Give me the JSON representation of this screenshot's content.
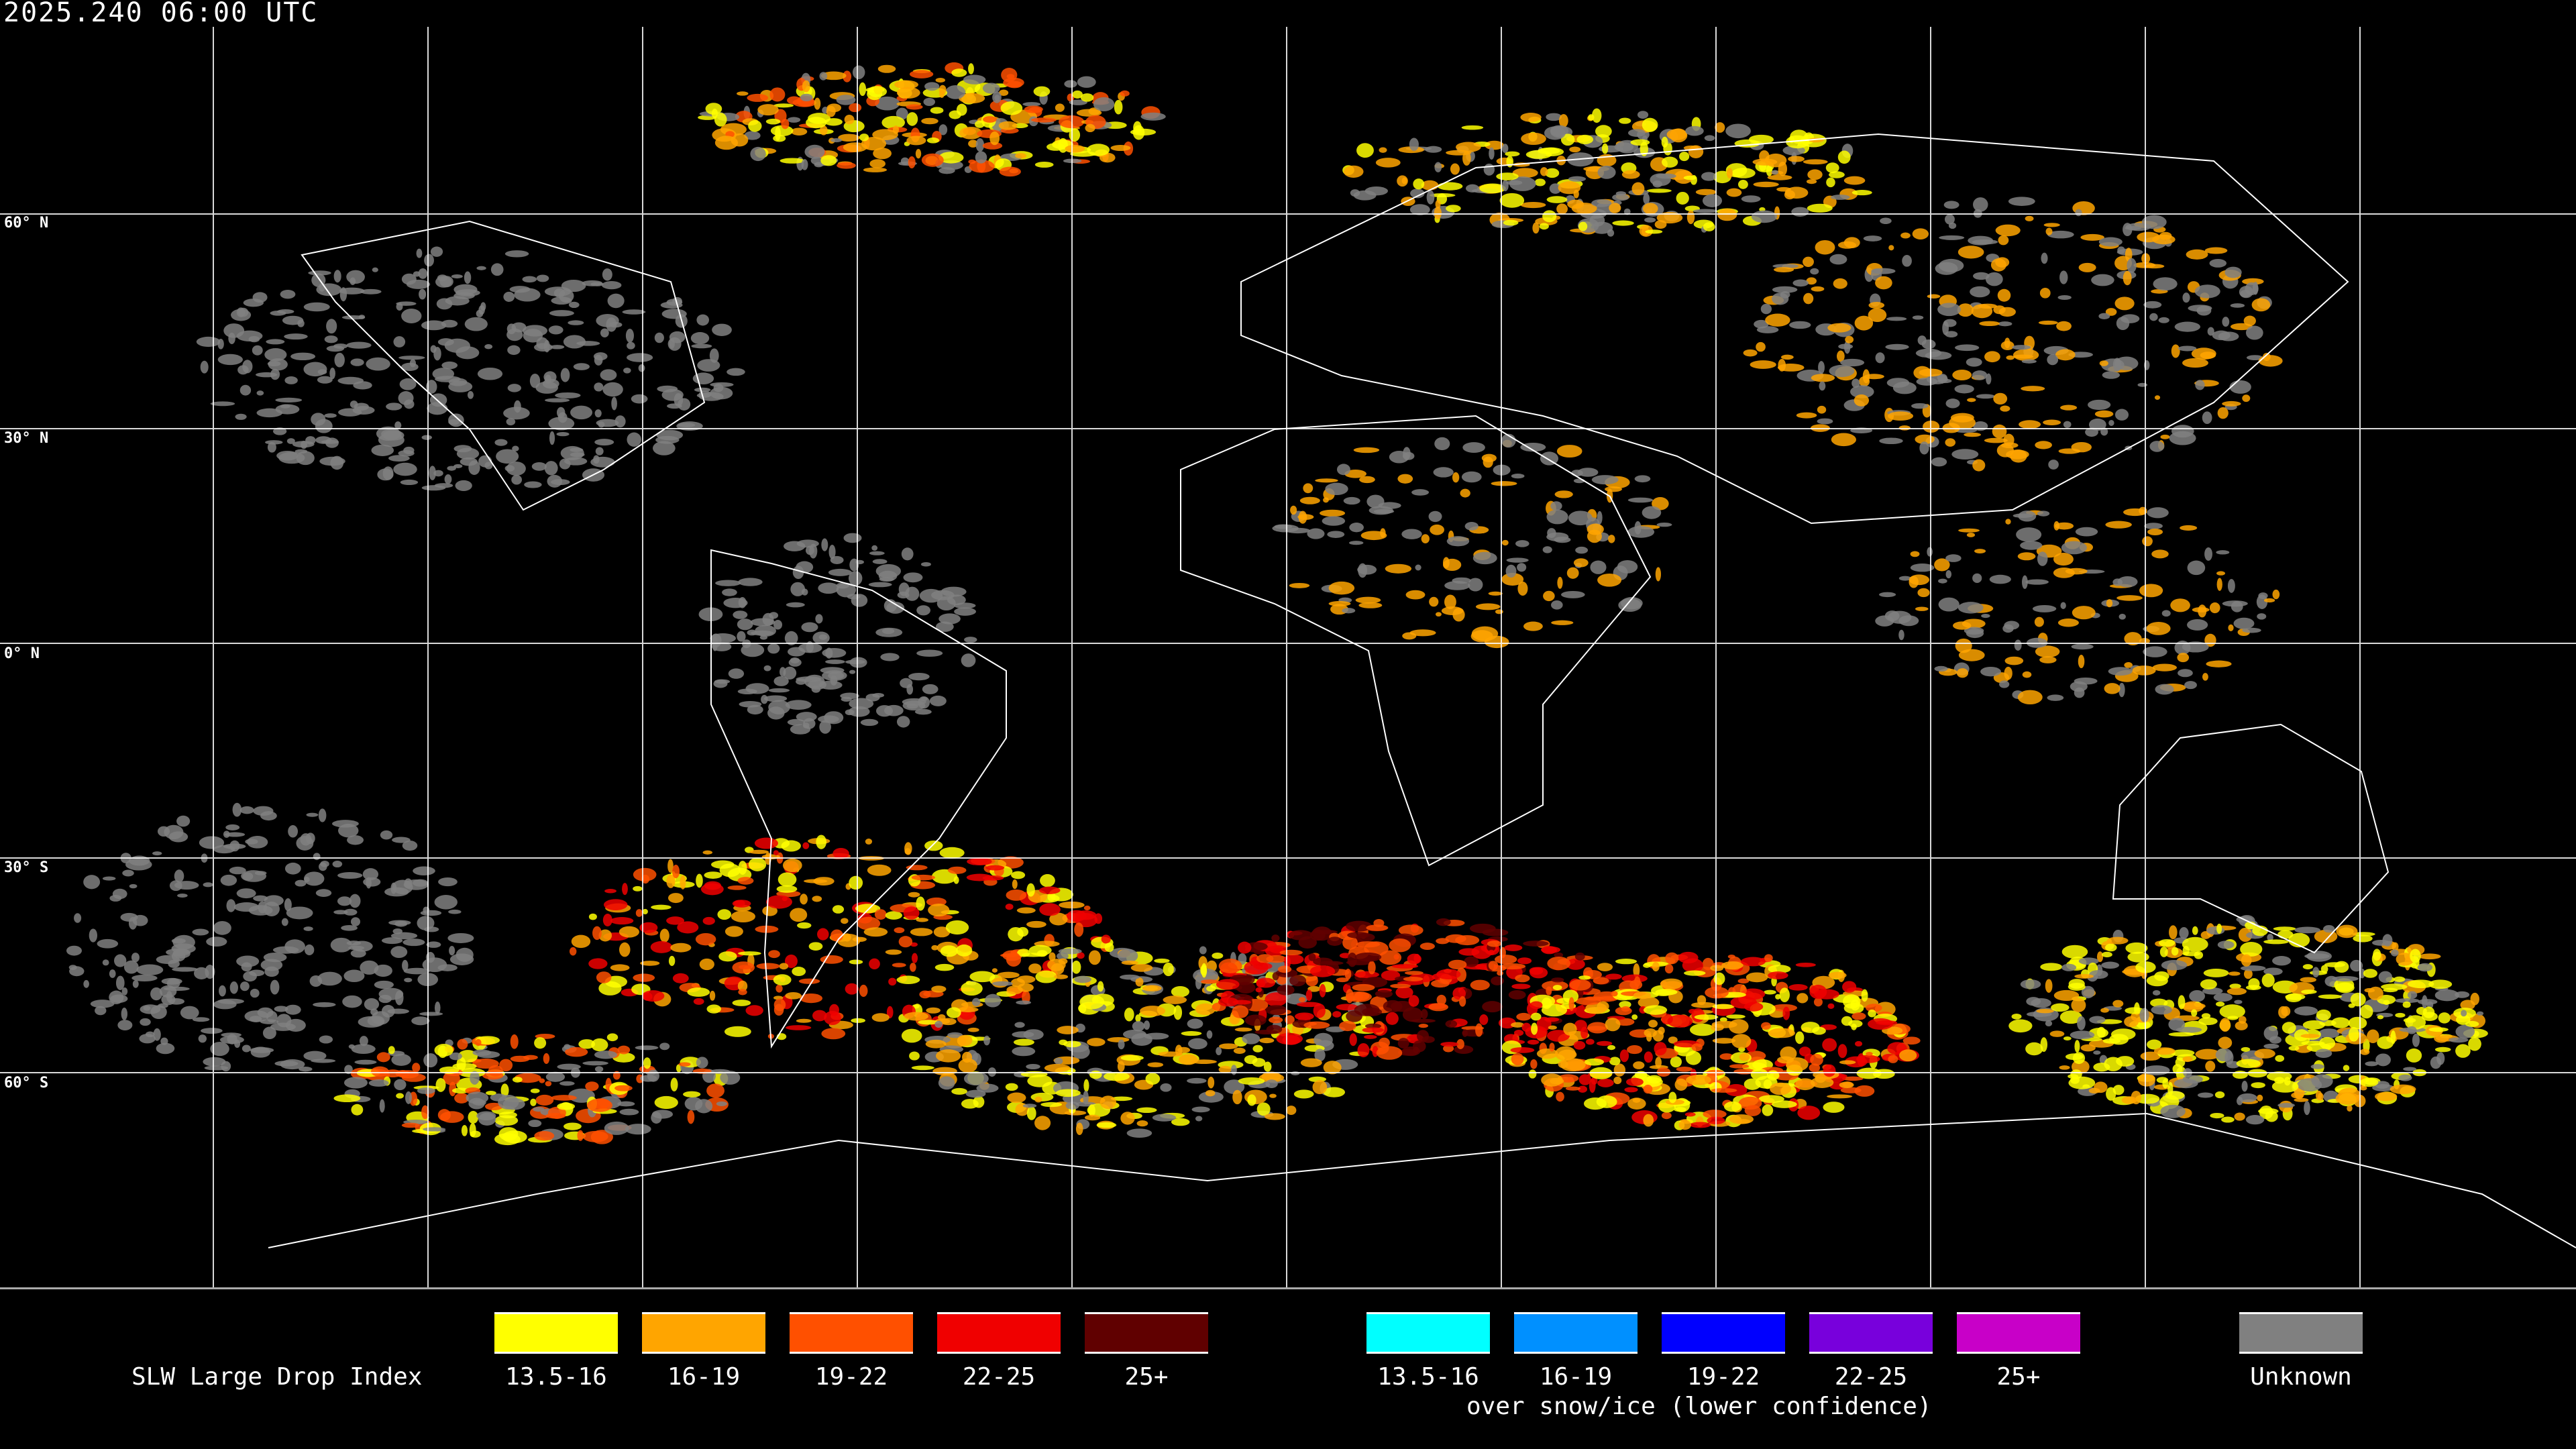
{
  "title": "2025.240 06:00 UTC",
  "latitude_labels": [
    "60° N",
    "30° N",
    "0° N",
    "30° S",
    "60° S"
  ],
  "legend": {
    "title": "SLW Large Drop Index",
    "categories": [
      {
        "label": "13.5-16",
        "color": "#ffff00"
      },
      {
        "label": "16-19",
        "color": "#ffa500"
      },
      {
        "label": "19-22",
        "color": "#ff5000"
      },
      {
        "label": "22-25",
        "color": "#f00000"
      },
      {
        "label": "25+",
        "color": "#600000"
      }
    ],
    "snow_ice_categories": [
      {
        "label": "13.5-16",
        "color": "#00ffff"
      },
      {
        "label": "16-19",
        "color": "#0090ff"
      },
      {
        "label": "19-22",
        "color": "#0000ff"
      },
      {
        "label": "22-25",
        "color": "#7800dc"
      },
      {
        "label": "25+",
        "color": "#c800c8"
      }
    ],
    "snow_ice_note": "over snow/ice (lower confidence)",
    "unknown": {
      "label": "Unknown",
      "color": "#808080"
    }
  }
}
